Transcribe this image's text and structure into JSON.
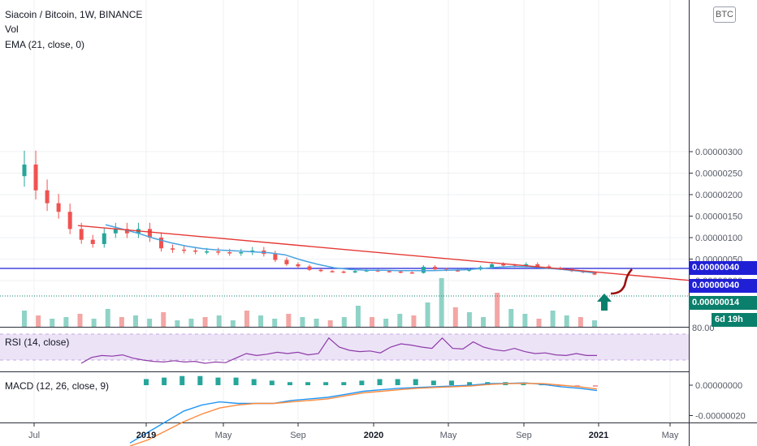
{
  "header": {
    "title": "Siacoin / Bitcoin, 1W, BINANCE",
    "vol_label": "Vol",
    "ema_label": "EMA (21, close, 0)",
    "currency_badge": "BTC"
  },
  "price_axis": {
    "ticks": [
      "0.00000300",
      "0.00000250",
      "0.00000200",
      "0.00000150",
      "0.00000100",
      "0.00000050",
      "0.00000000"
    ],
    "tick_values": [
      3e-06,
      2.5e-06,
      2e-06,
      1.5e-06,
      1e-06,
      5e-07,
      0.0
    ]
  },
  "price_tags": [
    {
      "label": "0.00000040",
      "color": "#1f1fd6"
    },
    {
      "label": "0.00000040",
      "color": "#1f1fd6"
    },
    {
      "label": "0.00000014",
      "color": "#0a7f6c"
    },
    {
      "label": "6d 19h",
      "color": "#0a7f6c"
    }
  ],
  "time_axis": {
    "labels": [
      "Jul",
      "2019",
      "May",
      "Sep",
      "2020",
      "May",
      "Sep",
      "2021",
      "May"
    ]
  },
  "rsi": {
    "label": "RSI (14, close)",
    "axis_label": "80.00",
    "levels": [
      70,
      30
    ],
    "values": [
      25,
      34,
      37,
      36,
      38,
      33,
      30,
      28,
      27,
      29,
      27,
      28,
      25,
      27,
      26,
      33,
      40,
      37,
      39,
      42,
      40,
      42,
      38,
      40,
      64,
      50,
      45,
      43,
      44,
      41,
      50,
      55,
      53,
      50,
      48,
      64,
      48,
      47,
      58,
      50,
      46,
      44,
      48,
      43,
      40,
      41,
      38,
      37,
      40,
      37,
      37
    ]
  },
  "macd": {
    "label": "MACD (12, 26, close, 9)",
    "axis_labels": [
      "0.00000000",
      "-0.00000020"
    ],
    "axis_values": [
      0.0,
      -2e-07
    ],
    "macd_line": [
      -3.8e-07,
      -3.1e-07,
      -2.4e-07,
      -1.7e-07,
      -1.3e-07,
      -1.1e-07,
      -1.2e-07,
      -1.2e-07,
      -1.2e-07,
      -1e-07,
      -9e-08,
      -8e-08,
      -6e-08,
      -4e-08,
      -3e-08,
      -2e-08,
      -1.5e-08,
      -1e-08,
      -5e-09,
      0.0,
      1e-08,
      1.2e-08,
      1.5e-08,
      5e-09,
      -1e-08,
      -2e-08,
      -3.5e-08
    ],
    "signal_line": [
      -4e-07,
      -3.6e-07,
      -3e-07,
      -2.4e-07,
      -1.9e-07,
      -1.5e-07,
      -1.3e-07,
      -1.2e-07,
      -1.2e-07,
      -1.1e-07,
      -1e-07,
      -9e-08,
      -7e-08,
      -5e-08,
      -4e-08,
      -3e-08,
      -2e-08,
      -1.5e-08,
      -1e-08,
      -5e-09,
      5e-09,
      1e-08,
      1.2e-08,
      1e-08,
      0.0,
      -1e-08,
      -2.5e-08
    ],
    "histogram": [
      4e-08,
      5e-08,
      6e-08,
      6e-08,
      5e-08,
      5e-08,
      4e-08,
      3e-08,
      2e-08,
      2e-08,
      2e-08,
      2e-08,
      3e-08,
      4e-08,
      4e-08,
      4e-08,
      3e-08,
      3e-08,
      2e-08,
      2e-08,
      2e-08,
      1e-08,
      5e-09,
      -5e-09,
      -1e-08,
      -1e-08,
      -1e-08
    ]
  },
  "chart_data": {
    "type": "candlestick",
    "title": "Siacoin / Bitcoin, 1W, BINANCE",
    "xlabel": "",
    "ylabel": "",
    "x_range": [
      "2018-06",
      "2021-05"
    ],
    "ylim": [
      0.0,
      3.1e-06
    ],
    "candles_close": [
      2.7e-06,
      2.1e-06,
      1.8e-06,
      1.6e-06,
      1.2e-06,
      9.5e-07,
      8.5e-07,
      1.1e-06,
      1.2e-06,
      1.1e-06,
      1.2e-06,
      1e-06,
      7.5e-07,
      7.2e-07,
      7e-07,
      6.8e-07,
      6.8e-07,
      6.6e-07,
      6.4e-07,
      6.6e-07,
      7e-07,
      6.2e-07,
      4.8e-07,
      3.8e-07,
      3.3e-07,
      2.5e-07,
      2.2e-07,
      2.1e-07,
      1.9e-07,
      2.2e-07,
      2.4e-07,
      2.2e-07,
      2.1e-07,
      1.9e-07,
      1.8e-07,
      3.2e-07,
      2.6e-07,
      2.4e-07,
      2.3e-07,
      2.6e-07,
      3.1e-07,
      3.8e-07,
      3.5e-07,
      3.4e-07,
      3.8e-07,
      3.3e-07,
      2.9e-07,
      2.7e-07,
      2.2e-07,
      1.9e-07,
      1.4e-07
    ],
    "ema21": [
      1.3e-06,
      1.2e-06,
      1.1e-06,
      9.8e-07,
      8.8e-07,
      8e-07,
      7.4e-07,
      7.1e-07,
      6.9e-07,
      6.7e-07,
      6.5e-07,
      6e-07,
      4.8e-07,
      3.8e-07,
      3e-07,
      2.6e-07,
      2.4e-07,
      2.4e-07,
      2.3e-07,
      2.3e-07,
      2.3e-07,
      2.4e-07,
      2.5e-07,
      2.8e-07,
      3.1e-07,
      3.3e-07,
      3.2e-07,
      2.9e-07,
      2.6e-07,
      2.2e-07,
      1.8e-07
    ],
    "trendline": {
      "start_value": 1.28e-06,
      "end_value": 5e-09
    },
    "horizontal_level": 4e-07,
    "current_price": 1.4e-07,
    "annotations": [
      "up-arrow",
      "projected-path"
    ]
  }
}
